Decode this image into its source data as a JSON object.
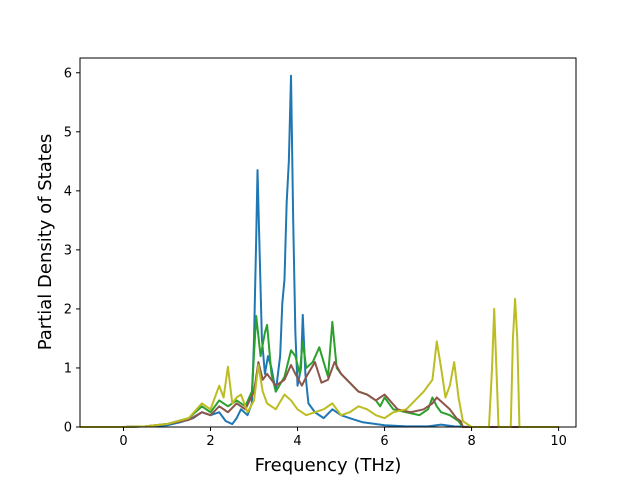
{
  "chart_data": {
    "type": "line",
    "title": "",
    "xlabel": "Frequency (THz)",
    "ylabel": "Partial Density of States",
    "xlim": [
      -1,
      10.4
    ],
    "ylim": [
      0,
      6.25
    ],
    "x_ticks": [
      0,
      2,
      4,
      6,
      8,
      10
    ],
    "y_ticks": [
      0,
      1,
      2,
      3,
      4,
      5,
      6
    ],
    "grid": false,
    "legend": "none",
    "series": [
      {
        "color": "#1f77b4",
        "points": [
          [
            -1,
            0
          ],
          [
            0,
            0
          ],
          [
            0.5,
            0.01
          ],
          [
            1,
            0.03
          ],
          [
            1.3,
            0.08
          ],
          [
            1.6,
            0.15
          ],
          [
            1.8,
            0.25
          ],
          [
            2.0,
            0.2
          ],
          [
            2.2,
            0.25
          ],
          [
            2.35,
            0.1
          ],
          [
            2.5,
            0.05
          ],
          [
            2.6,
            0.15
          ],
          [
            2.7,
            0.3
          ],
          [
            2.85,
            0.2
          ],
          [
            2.95,
            0.4
          ],
          [
            3.0,
            1.5
          ],
          [
            3.05,
            3.2
          ],
          [
            3.08,
            4.35
          ],
          [
            3.12,
            3.2
          ],
          [
            3.18,
            1.5
          ],
          [
            3.25,
            0.9
          ],
          [
            3.32,
            1.2
          ],
          [
            3.4,
            1.0
          ],
          [
            3.5,
            0.6
          ],
          [
            3.6,
            1.2
          ],
          [
            3.65,
            2.1
          ],
          [
            3.7,
            2.5
          ],
          [
            3.75,
            3.8
          ],
          [
            3.8,
            4.5
          ],
          [
            3.85,
            5.95
          ],
          [
            3.9,
            3.5
          ],
          [
            3.95,
            1.6
          ],
          [
            4.0,
            0.7
          ],
          [
            4.08,
            1.0
          ],
          [
            4.12,
            1.9
          ],
          [
            4.18,
            0.9
          ],
          [
            4.25,
            0.4
          ],
          [
            4.4,
            0.25
          ],
          [
            4.6,
            0.15
          ],
          [
            4.8,
            0.3
          ],
          [
            5.0,
            0.2
          ],
          [
            5.2,
            0.15
          ],
          [
            5.5,
            0.08
          ],
          [
            6.0,
            0.03
          ],
          [
            6.5,
            0.01
          ],
          [
            7.0,
            0.01
          ],
          [
            7.3,
            0.04
          ],
          [
            7.6,
            0.01
          ],
          [
            8.0,
            0
          ],
          [
            10,
            0
          ]
        ]
      },
      {
        "color": "#2ca02c",
        "points": [
          [
            -1,
            0
          ],
          [
            0,
            0
          ],
          [
            0.5,
            0.01
          ],
          [
            1,
            0.05
          ],
          [
            1.5,
            0.15
          ],
          [
            1.8,
            0.35
          ],
          [
            2.0,
            0.25
          ],
          [
            2.2,
            0.45
          ],
          [
            2.4,
            0.35
          ],
          [
            2.6,
            0.45
          ],
          [
            2.8,
            0.35
          ],
          [
            2.95,
            0.6
          ],
          [
            3.05,
            1.88
          ],
          [
            3.15,
            1.2
          ],
          [
            3.25,
            1.6
          ],
          [
            3.3,
            1.73
          ],
          [
            3.4,
            0.9
          ],
          [
            3.5,
            0.6
          ],
          [
            3.7,
            0.85
          ],
          [
            3.85,
            1.3
          ],
          [
            3.95,
            1.2
          ],
          [
            4.05,
            0.9
          ],
          [
            4.12,
            1.45
          ],
          [
            4.2,
            1.0
          ],
          [
            4.35,
            1.1
          ],
          [
            4.5,
            1.35
          ],
          [
            4.6,
            1.1
          ],
          [
            4.7,
            0.85
          ],
          [
            4.8,
            1.78
          ],
          [
            4.9,
            1.0
          ],
          [
            5.0,
            0.9
          ],
          [
            5.2,
            0.75
          ],
          [
            5.4,
            0.6
          ],
          [
            5.6,
            0.55
          ],
          [
            5.8,
            0.45
          ],
          [
            5.9,
            0.35
          ],
          [
            6.0,
            0.5
          ],
          [
            6.2,
            0.3
          ],
          [
            6.5,
            0.25
          ],
          [
            6.8,
            0.2
          ],
          [
            7.0,
            0.3
          ],
          [
            7.1,
            0.5
          ],
          [
            7.2,
            0.35
          ],
          [
            7.3,
            0.25
          ],
          [
            7.5,
            0.2
          ],
          [
            7.7,
            0.1
          ],
          [
            7.8,
            0
          ],
          [
            10,
            0
          ]
        ]
      },
      {
        "color": "#8c564b",
        "points": [
          [
            -1,
            0
          ],
          [
            0,
            0
          ],
          [
            0.5,
            0.01
          ],
          [
            1,
            0.05
          ],
          [
            1.5,
            0.12
          ],
          [
            1.8,
            0.25
          ],
          [
            2.0,
            0.2
          ],
          [
            2.2,
            0.35
          ],
          [
            2.4,
            0.25
          ],
          [
            2.6,
            0.4
          ],
          [
            2.8,
            0.3
          ],
          [
            3.0,
            0.6
          ],
          [
            3.1,
            1.1
          ],
          [
            3.2,
            0.8
          ],
          [
            3.3,
            0.9
          ],
          [
            3.5,
            0.7
          ],
          [
            3.7,
            0.8
          ],
          [
            3.85,
            1.05
          ],
          [
            3.95,
            0.9
          ],
          [
            4.1,
            0.7
          ],
          [
            4.2,
            0.85
          ],
          [
            4.4,
            1.1
          ],
          [
            4.55,
            0.75
          ],
          [
            4.7,
            0.8
          ],
          [
            4.85,
            1.1
          ],
          [
            5.0,
            0.9
          ],
          [
            5.2,
            0.75
          ],
          [
            5.4,
            0.6
          ],
          [
            5.6,
            0.55
          ],
          [
            5.8,
            0.45
          ],
          [
            6.0,
            0.55
          ],
          [
            6.3,
            0.3
          ],
          [
            6.6,
            0.25
          ],
          [
            6.9,
            0.3
          ],
          [
            7.1,
            0.4
          ],
          [
            7.2,
            0.5
          ],
          [
            7.35,
            0.4
          ],
          [
            7.5,
            0.3
          ],
          [
            7.65,
            0.15
          ],
          [
            7.75,
            0.1
          ],
          [
            7.8,
            0
          ],
          [
            10,
            0
          ]
        ]
      },
      {
        "color": "#bcbd22",
        "points": [
          [
            -1,
            0
          ],
          [
            0,
            0
          ],
          [
            0.5,
            0.01
          ],
          [
            1,
            0.05
          ],
          [
            1.5,
            0.15
          ],
          [
            1.8,
            0.4
          ],
          [
            2.0,
            0.3
          ],
          [
            2.1,
            0.5
          ],
          [
            2.2,
            0.7
          ],
          [
            2.3,
            0.5
          ],
          [
            2.4,
            1.02
          ],
          [
            2.5,
            0.4
          ],
          [
            2.6,
            0.5
          ],
          [
            2.7,
            0.55
          ],
          [
            2.85,
            0.25
          ],
          [
            3.0,
            0.45
          ],
          [
            3.1,
            1.05
          ],
          [
            3.2,
            0.6
          ],
          [
            3.3,
            0.4
          ],
          [
            3.5,
            0.3
          ],
          [
            3.7,
            0.55
          ],
          [
            3.85,
            0.45
          ],
          [
            4.0,
            0.3
          ],
          [
            4.2,
            0.2
          ],
          [
            4.4,
            0.25
          ],
          [
            4.6,
            0.3
          ],
          [
            4.8,
            0.4
          ],
          [
            5.0,
            0.2
          ],
          [
            5.2,
            0.25
          ],
          [
            5.4,
            0.35
          ],
          [
            5.6,
            0.3
          ],
          [
            5.8,
            0.2
          ],
          [
            6.0,
            0.15
          ],
          [
            6.2,
            0.25
          ],
          [
            6.5,
            0.3
          ],
          [
            6.7,
            0.45
          ],
          [
            6.9,
            0.6
          ],
          [
            7.1,
            0.8
          ],
          [
            7.2,
            1.45
          ],
          [
            7.3,
            1.0
          ],
          [
            7.4,
            0.5
          ],
          [
            7.5,
            0.7
          ],
          [
            7.6,
            1.1
          ],
          [
            7.7,
            0.5
          ],
          [
            7.8,
            0.1
          ],
          [
            8.0,
            0
          ],
          [
            8.4,
            0
          ],
          [
            8.47,
            1.0
          ],
          [
            8.52,
            2.0
          ],
          [
            8.57,
            1.0
          ],
          [
            8.62,
            0
          ],
          [
            8.9,
            0
          ],
          [
            8.95,
            1.5
          ],
          [
            9.0,
            2.17
          ],
          [
            9.05,
            1.5
          ],
          [
            9.1,
            0
          ],
          [
            10,
            0
          ]
        ]
      }
    ]
  }
}
